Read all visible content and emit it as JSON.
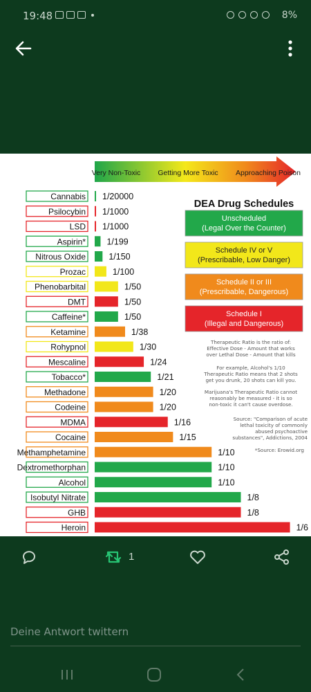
{
  "status_bar": {
    "time": "19:48",
    "battery": "8%"
  },
  "chart_data": {
    "type": "bar",
    "title": "DEA Drug Schedules",
    "gradient_labels": [
      "Very Non-Toxic",
      "Getting More Toxic",
      "Approaching Poison"
    ],
    "schedule_colors": {
      "unscheduled": "#22a84a",
      "schedule_iv_v": "#f2e71a",
      "schedule_ii_iii": "#f08a1c",
      "schedule_i": "#e5252a"
    },
    "bars": [
      {
        "name": "Cannabis",
        "ratio": "1/20000",
        "value": 5e-05,
        "schedule": "unscheduled"
      },
      {
        "name": "Psilocybin",
        "ratio": "1/1000",
        "value": 0.001,
        "schedule": "schedule_i"
      },
      {
        "name": "LSD",
        "ratio": "1/1000",
        "value": 0.001,
        "schedule": "schedule_i"
      },
      {
        "name": "Aspirin*",
        "ratio": "1/199",
        "value": 0.005,
        "schedule": "unscheduled"
      },
      {
        "name": "Nitrous Oxide",
        "ratio": "1/150",
        "value": 0.0067,
        "schedule": "unscheduled"
      },
      {
        "name": "Prozac",
        "ratio": "1/100",
        "value": 0.01,
        "schedule": "schedule_iv_v"
      },
      {
        "name": "Phenobarbital",
        "ratio": "1/50",
        "value": 0.02,
        "schedule": "schedule_iv_v"
      },
      {
        "name": "DMT",
        "ratio": "1/50",
        "value": 0.02,
        "schedule": "schedule_i"
      },
      {
        "name": "Caffeine*",
        "ratio": "1/50",
        "value": 0.02,
        "schedule": "unscheduled"
      },
      {
        "name": "Ketamine",
        "ratio": "1/38",
        "value": 0.026,
        "schedule": "schedule_ii_iii"
      },
      {
        "name": "Rohypnol",
        "ratio": "1/30",
        "value": 0.033,
        "schedule": "schedule_iv_v"
      },
      {
        "name": "Mescaline",
        "ratio": "1/24",
        "value": 0.042,
        "schedule": "schedule_i"
      },
      {
        "name": "Tobacco*",
        "ratio": "1/21",
        "value": 0.048,
        "schedule": "unscheduled"
      },
      {
        "name": "Methadone",
        "ratio": "1/20",
        "value": 0.05,
        "schedule": "schedule_ii_iii"
      },
      {
        "name": "Codeine",
        "ratio": "1/20",
        "value": 0.05,
        "schedule": "schedule_ii_iii"
      },
      {
        "name": "MDMA",
        "ratio": "1/16",
        "value": 0.0625,
        "schedule": "schedule_i"
      },
      {
        "name": "Cocaine",
        "ratio": "1/15",
        "value": 0.067,
        "schedule": "schedule_ii_iii"
      },
      {
        "name": "Methamphetamine",
        "ratio": "1/10",
        "value": 0.1,
        "schedule": "schedule_ii_iii"
      },
      {
        "name": "Dextromethorphan",
        "ratio": "1/10",
        "value": 0.1,
        "schedule": "unscheduled"
      },
      {
        "name": "Alcohol",
        "ratio": "1/10",
        "value": 0.1,
        "schedule": "unscheduled"
      },
      {
        "name": "Isobutyl Nitrate",
        "ratio": "1/8",
        "value": 0.125,
        "schedule": "unscheduled"
      },
      {
        "name": "GHB",
        "ratio": "1/8",
        "value": 0.125,
        "schedule": "schedule_i"
      },
      {
        "name": "Heroin",
        "ratio": "1/6",
        "value": 0.167,
        "schedule": "schedule_i"
      }
    ],
    "legend": [
      {
        "line1": "Unscheduled",
        "line2": "(Legal Over the Counter)",
        "schedule": "unscheduled"
      },
      {
        "line1": "Schedule IV or V",
        "line2": "(Prescribable, Low Danger)",
        "schedule": "schedule_iv_v"
      },
      {
        "line1": "Schedule II or III",
        "line2": "(Prescribable, Dangerous)",
        "schedule": "schedule_ii_iii"
      },
      {
        "line1": "Schedule I",
        "line2": "(Illegal and Dangerous)",
        "schedule": "schedule_i"
      }
    ],
    "notes": {
      "therapeutic": [
        "Therapeutic Ratio is the ratio of:",
        "Effective Dose - Amount that works",
        "over Lethal Dose - Amount that kills"
      ],
      "example": [
        "For example, Alcohol's 1/10",
        "Therapeutic Ratio means that 2 shots",
        "get you drunk, 20 shots can kill you."
      ],
      "marijuana": [
        "Marijuana's Therapeutic Ratio cannot",
        "reasonably be measured - it is so",
        "non-toxic it can't cause overdose."
      ],
      "source": [
        "Source: \"Comparison of acute",
        "lethal toxicity of commonly",
        "abused psychoactive",
        "substances\", Addictions, 2004"
      ],
      "source2": "*Source: Erowid.org"
    }
  },
  "tweet_actions": {
    "retweet_count": "1"
  },
  "reply": {
    "placeholder": "Deine Antwort twittern"
  }
}
